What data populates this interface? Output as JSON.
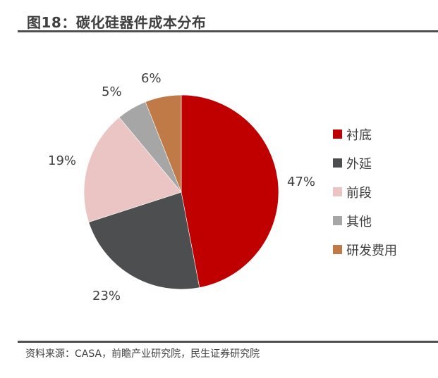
{
  "header": {
    "title": "图18：碳化硅器件成本分布"
  },
  "footer": {
    "source": "资料来源：CASA，前瞻产业研究院，民生证券研究院"
  },
  "chart_data": {
    "type": "pie",
    "title": "图18：碳化硅器件成本分布",
    "categories": [
      "衬底",
      "外延",
      "前段",
      "其他",
      "研发费用"
    ],
    "values": [
      47,
      23,
      19,
      5,
      6
    ],
    "labels": [
      "47%",
      "23%",
      "19%",
      "5%",
      "6%"
    ],
    "colors": [
      "#C00000",
      "#4D4E50",
      "#EBC4C4",
      "#A6A6A6",
      "#BF7A47"
    ],
    "start_angle": "12 o'clock, clockwise",
    "legend_position": "right"
  },
  "legend": [
    {
      "label": "衬底",
      "color": "#C00000"
    },
    {
      "label": "外延",
      "color": "#4D4E50"
    },
    {
      "label": "前段",
      "color": "#EBC4C4"
    },
    {
      "label": "其他",
      "color": "#A6A6A6"
    },
    {
      "label": "研发费用",
      "color": "#BF7A47"
    }
  ]
}
